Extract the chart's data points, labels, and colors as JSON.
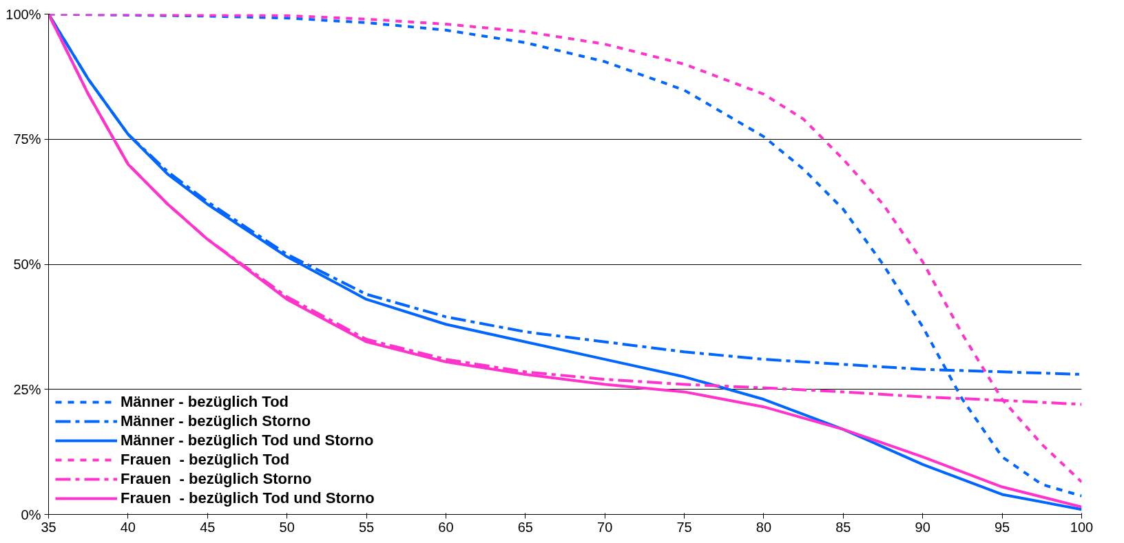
{
  "chart_data": {
    "type": "line",
    "xlim": [
      35,
      100
    ],
    "ylim": [
      0,
      100
    ],
    "xticks": [
      35,
      40,
      45,
      50,
      55,
      60,
      65,
      70,
      75,
      80,
      85,
      90,
      95,
      100
    ],
    "yticks": [
      {
        "value": 0,
        "label": "0%"
      },
      {
        "value": 25,
        "label": "25%"
      },
      {
        "value": 50,
        "label": "50%"
      },
      {
        "value": 75,
        "label": "75%"
      },
      {
        "value": 100,
        "label": "100%"
      }
    ],
    "grid": "y",
    "legend": "bottom left",
    "series": [
      {
        "name": "Männer - bezüglich Tod",
        "color": "#0066ff",
        "line_style": "dotted",
        "x": [
          35,
          40,
          45,
          50,
          55,
          60,
          65,
          70,
          75,
          80,
          82.5,
          85,
          87.5,
          90,
          92.5,
          95,
          97.5,
          100
        ],
        "values": [
          100,
          99.8,
          99.6,
          99.2,
          98.3,
          96.8,
          94.3,
          90.5,
          84.8,
          75.5,
          69,
          61,
          50,
          37.5,
          23,
          11.5,
          6,
          3.7
        ]
      },
      {
        "name": "Männer - bezüglich Storno",
        "color": "#0066ff",
        "line_style": "dashed",
        "x": [
          35,
          37.5,
          40,
          42.5,
          45,
          50,
          55,
          60,
          65,
          70,
          75,
          80,
          85,
          90,
          95,
          100
        ],
        "values": [
          100,
          87,
          76,
          68.5,
          62.5,
          52,
          44,
          39.5,
          36.5,
          34.5,
          32.5,
          31,
          30,
          29,
          28.5,
          28
        ]
      },
      {
        "name": "Männer - bezüglich Tod und Storno",
        "color": "#0066ff",
        "line_style": "solid",
        "x": [
          35,
          37.5,
          40,
          42.5,
          45,
          50,
          55,
          60,
          65,
          70,
          75,
          80,
          85,
          90,
          95,
          100
        ],
        "values": [
          100,
          87,
          76,
          68,
          62,
          51.5,
          43,
          38,
          34.5,
          31,
          27.5,
          23,
          17,
          10,
          4,
          1
        ]
      },
      {
        "name": "Frauen  - bezüglich Tod",
        "color": "#ff33cc",
        "line_style": "dotted",
        "x": [
          35,
          40,
          45,
          50,
          55,
          60,
          65,
          70,
          75,
          80,
          82.5,
          85,
          87.5,
          90,
          92.5,
          95,
          97.5,
          100
        ],
        "values": [
          100,
          99.9,
          99.8,
          99.7,
          99,
          98,
          96.5,
          94,
          90,
          84,
          79,
          71,
          62,
          50.5,
          36,
          23,
          14,
          6.5
        ]
      },
      {
        "name": "Frauen  - bezüglich Storno",
        "color": "#ff33cc",
        "line_style": "dashed",
        "x": [
          35,
          37.5,
          40,
          42.5,
          45,
          50,
          55,
          60,
          65,
          70,
          75,
          80,
          85,
          90,
          95,
          100
        ],
        "values": [
          100,
          84,
          70,
          62,
          55,
          43.5,
          35,
          31,
          28.5,
          27,
          26,
          25.3,
          24.5,
          23.5,
          22.8,
          22
        ]
      },
      {
        "name": "Frauen  - bezüglich Tod und Storno",
        "color": "#ff33cc",
        "line_style": "solid",
        "x": [
          35,
          37.5,
          40,
          42.5,
          45,
          50,
          55,
          60,
          65,
          70,
          75,
          80,
          85,
          90,
          95,
          100
        ],
        "values": [
          100,
          84,
          70,
          62,
          55,
          43,
          34.5,
          30.5,
          28,
          26,
          24.5,
          21.5,
          17,
          11.5,
          5.5,
          1.5
        ]
      }
    ]
  }
}
